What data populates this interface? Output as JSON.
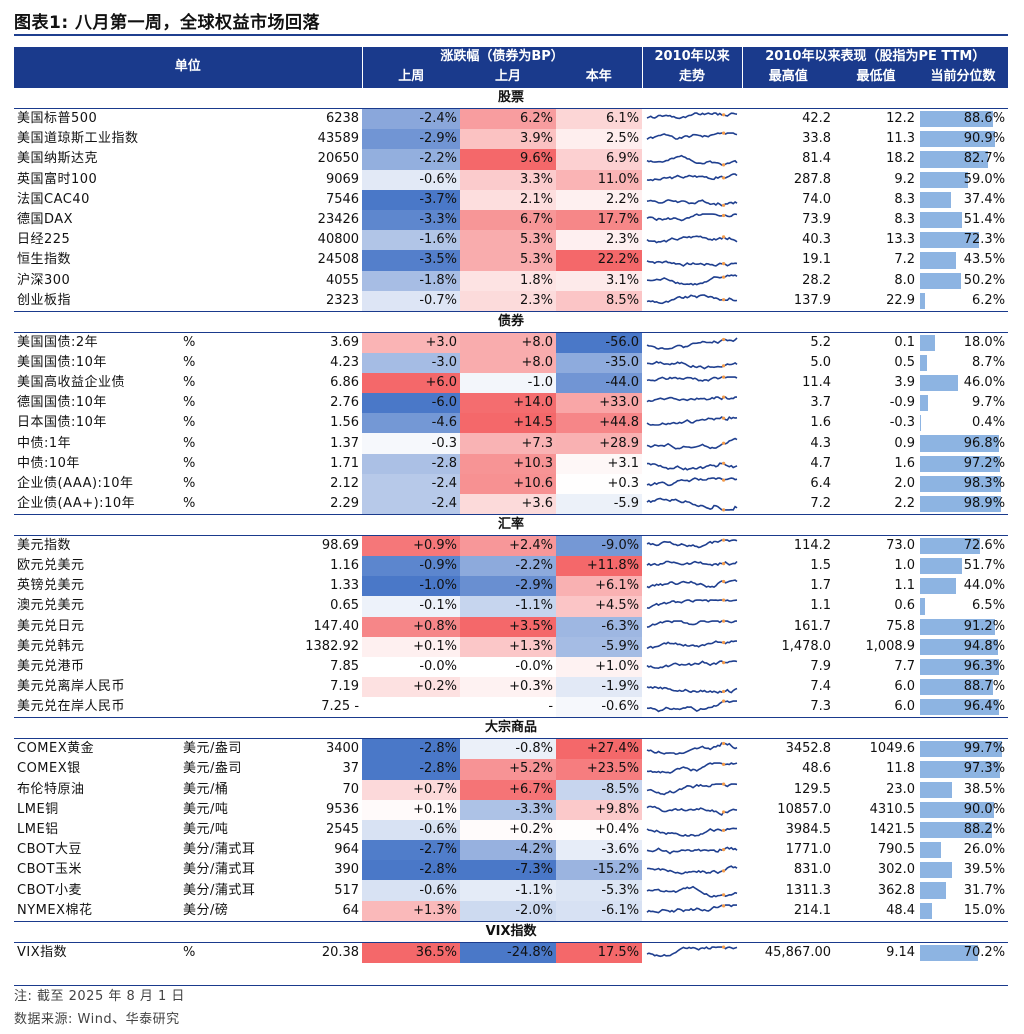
{
  "title": "图表1:  八月第一周，全球权益市场回落",
  "header": {
    "unit": "单位",
    "change_group": "涨跌幅（债券为BP）",
    "week": "上周",
    "month": "上月",
    "ytd": "本年",
    "trend_top": "2010年以来",
    "trend_bottom": "走势",
    "perf_group": "2010年以来表现（股指为PE TTM）",
    "max": "最高值",
    "min": "最低值",
    "pct": "当前分位数"
  },
  "colors": {
    "header_bg": "#1a3a8c",
    "positive_strong": "#f4686a",
    "negative_strong": "#4a78c8",
    "spark_line": "#1f3f8f",
    "pct_bar": "#8db4e2"
  },
  "sections": [
    {
      "title": "股票",
      "rows": [
        {
          "name": "美国标普500",
          "unit": "",
          "value": "6238",
          "week": "-2.4%",
          "month": "6.2%",
          "ytd": "6.1%",
          "max": "42.2",
          "min": "12.2",
          "pct": "88.6%",
          "pv": 0.886,
          "wv": -2.4,
          "mv": 6.2,
          "yv": 6.1
        },
        {
          "name": "美国道琼斯工业指数",
          "unit": "",
          "value": "43589",
          "week": "-2.9%",
          "month": "3.9%",
          "ytd": "2.5%",
          "max": "33.8",
          "min": "11.3",
          "pct": "90.9%",
          "pv": 0.909,
          "wv": -2.9,
          "mv": 3.9,
          "yv": 2.5
        },
        {
          "name": "美国纳斯达克",
          "unit": "",
          "value": "20650",
          "week": "-2.2%",
          "month": "9.6%",
          "ytd": "6.9%",
          "max": "81.4",
          "min": "18.2",
          "pct": "82.7%",
          "pv": 0.827,
          "wv": -2.2,
          "mv": 9.6,
          "yv": 6.9
        },
        {
          "name": "英国富时100",
          "unit": "",
          "value": "9069",
          "week": "-0.6%",
          "month": "3.3%",
          "ytd": "11.0%",
          "max": "287.8",
          "min": "9.2",
          "pct": "59.0%",
          "pv": 0.59,
          "wv": -0.6,
          "mv": 3.3,
          "yv": 11.0
        },
        {
          "name": "法国CAC40",
          "unit": "",
          "value": "7546",
          "week": "-3.7%",
          "month": "2.1%",
          "ytd": "2.2%",
          "max": "74.0",
          "min": "8.3",
          "pct": "37.4%",
          "pv": 0.374,
          "wv": -3.7,
          "mv": 2.1,
          "yv": 2.2
        },
        {
          "name": "德国DAX",
          "unit": "",
          "value": "23426",
          "week": "-3.3%",
          "month": "6.7%",
          "ytd": "17.7%",
          "max": "73.9",
          "min": "8.3",
          "pct": "51.4%",
          "pv": 0.514,
          "wv": -3.3,
          "mv": 6.7,
          "yv": 17.7
        },
        {
          "name": "日经225",
          "unit": "",
          "value": "40800",
          "week": "-1.6%",
          "month": "5.3%",
          "ytd": "2.3%",
          "max": "40.3",
          "min": "13.3",
          "pct": "72.3%",
          "pv": 0.723,
          "wv": -1.6,
          "mv": 5.3,
          "yv": 2.3
        },
        {
          "name": "恒生指数",
          "unit": "",
          "value": "24508",
          "week": "-3.5%",
          "month": "5.3%",
          "ytd": "22.2%",
          "max": "19.1",
          "min": "7.2",
          "pct": "43.5%",
          "pv": 0.435,
          "wv": -3.5,
          "mv": 5.3,
          "yv": 22.2
        },
        {
          "name": "沪深300",
          "unit": "",
          "value": "4055",
          "week": "-1.8%",
          "month": "1.8%",
          "ytd": "3.1%",
          "max": "28.2",
          "min": "8.0",
          "pct": "50.2%",
          "pv": 0.502,
          "wv": -1.8,
          "mv": 1.8,
          "yv": 3.1
        },
        {
          "name": "创业板指",
          "unit": "",
          "value": "2323",
          "week": "-0.7%",
          "month": "2.3%",
          "ytd": "8.5%",
          "max": "137.9",
          "min": "22.9",
          "pct": "6.2%",
          "pv": 0.062,
          "wv": -0.7,
          "mv": 2.3,
          "yv": 8.5
        }
      ]
    },
    {
      "title": "债券",
      "rows": [
        {
          "name": "美国国债:2年",
          "unit": "%",
          "value": "3.69",
          "week": "+3.0",
          "month": "+8.0",
          "ytd": "-56.0",
          "max": "5.2",
          "min": "0.1",
          "pct": "18.0%",
          "pv": 0.18,
          "wv": 3.0,
          "mv": 8.0,
          "yv": -56.0
        },
        {
          "name": "美国国债:10年",
          "unit": "%",
          "value": "4.23",
          "week": "-3.0",
          "month": "+8.0",
          "ytd": "-35.0",
          "max": "5.0",
          "min": "0.5",
          "pct": "8.7%",
          "pv": 0.087,
          "wv": -3.0,
          "mv": 8.0,
          "yv": -35.0
        },
        {
          "name": "美国高收益企业债",
          "unit": "%",
          "value": "6.86",
          "week": "+6.0",
          "month": "-1.0",
          "ytd": "-44.0",
          "max": "11.4",
          "min": "3.9",
          "pct": "46.0%",
          "pv": 0.46,
          "wv": 6.0,
          "mv": -1.0,
          "yv": -44.0
        },
        {
          "name": "德国国债:10年",
          "unit": "%",
          "value": "2.76",
          "week": "-6.0",
          "month": "+14.0",
          "ytd": "+33.0",
          "max": "3.7",
          "min": "-0.9",
          "pct": "9.7%",
          "pv": 0.097,
          "wv": -6.0,
          "mv": 14.0,
          "yv": 33.0
        },
        {
          "name": "日本国债:10年",
          "unit": "%",
          "value": "1.56",
          "week": "-4.6",
          "month": "+14.5",
          "ytd": "+44.8",
          "max": "1.6",
          "min": "-0.3",
          "pct": "0.4%",
          "pv": 0.004,
          "wv": -4.6,
          "mv": 14.5,
          "yv": 44.8
        },
        {
          "name": "中债:1年",
          "unit": "%",
          "value": "1.37",
          "week": "-0.3",
          "month": "+7.3",
          "ytd": "+28.9",
          "max": "4.3",
          "min": "0.9",
          "pct": "96.8%",
          "pv": 0.968,
          "wv": -0.3,
          "mv": 7.3,
          "yv": 28.9
        },
        {
          "name": "中债:10年",
          "unit": "%",
          "value": "1.71",
          "week": "-2.8",
          "month": "+10.3",
          "ytd": "+3.1",
          "max": "4.7",
          "min": "1.6",
          "pct": "97.2%",
          "pv": 0.972,
          "wv": -2.8,
          "mv": 10.3,
          "yv": 3.1
        },
        {
          "name": "企业债(AAA):10年",
          "unit": "%",
          "value": "2.12",
          "week": "-2.4",
          "month": "+10.6",
          "ytd": "+0.3",
          "max": "6.4",
          "min": "2.0",
          "pct": "98.3%",
          "pv": 0.983,
          "wv": -2.4,
          "mv": 10.6,
          "yv": 0.3
        },
        {
          "name": "企业债(AA+):10年",
          "unit": "%",
          "value": "2.29",
          "week": "-2.4",
          "month": "+3.6",
          "ytd": "-5.9",
          "max": "7.2",
          "min": "2.2",
          "pct": "98.9%",
          "pv": 0.989,
          "wv": -2.4,
          "mv": 3.6,
          "yv": -5.9
        }
      ]
    },
    {
      "title": "汇率",
      "rows": [
        {
          "name": "美元指数",
          "unit": "",
          "value": "98.69",
          "week": "+0.9%",
          "month": "+2.4%",
          "ytd": "-9.0%",
          "max": "114.2",
          "min": "73.0",
          "pct": "72.6%",
          "pv": 0.726,
          "wv": 0.9,
          "mv": 2.4,
          "yv": -9.0
        },
        {
          "name": "欧元兑美元",
          "unit": "",
          "value": "1.16",
          "week": "-0.9%",
          "month": "-2.2%",
          "ytd": "+11.8%",
          "max": "1.5",
          "min": "1.0",
          "pct": "51.7%",
          "pv": 0.517,
          "wv": -0.9,
          "mv": -2.2,
          "yv": 11.8
        },
        {
          "name": "英镑兑美元",
          "unit": "",
          "value": "1.33",
          "week": "-1.0%",
          "month": "-2.9%",
          "ytd": "+6.1%",
          "max": "1.7",
          "min": "1.1",
          "pct": "44.0%",
          "pv": 0.44,
          "wv": -1.0,
          "mv": -2.9,
          "yv": 6.1
        },
        {
          "name": "澳元兑美元",
          "unit": "",
          "value": "0.65",
          "week": "-0.1%",
          "month": "-1.1%",
          "ytd": "+4.5%",
          "max": "1.1",
          "min": "0.6",
          "pct": "6.5%",
          "pv": 0.065,
          "wv": -0.1,
          "mv": -1.1,
          "yv": 4.5
        },
        {
          "name": "美元兑日元",
          "unit": "",
          "value": "147.40",
          "week": "+0.8%",
          "month": "+3.5%",
          "ytd": "-6.3%",
          "max": "161.7",
          "min": "75.8",
          "pct": "91.2%",
          "pv": 0.912,
          "wv": 0.8,
          "mv": 3.5,
          "yv": -6.3
        },
        {
          "name": "美元兑韩元",
          "unit": "",
          "value": "1382.92",
          "week": "+0.1%",
          "month": "+1.3%",
          "ytd": "-5.9%",
          "max": "1,478.0",
          "min": "1,008.9",
          "pct": "94.8%",
          "pv": 0.948,
          "wv": 0.1,
          "mv": 1.3,
          "yv": -5.9,
          "flag": true
        },
        {
          "name": "美元兑港币",
          "unit": "",
          "value": "7.85",
          "week": "-0.0%",
          "month": "-0.0%",
          "ytd": "+1.0%",
          "max": "7.9",
          "min": "7.7",
          "pct": "96.3%",
          "pv": 0.963,
          "wv": 0,
          "mv": 0,
          "yv": 1.0
        },
        {
          "name": "美元兑离岸人民币",
          "unit": "",
          "value": "7.19",
          "week": "+0.2%",
          "month": "+0.3%",
          "ytd": "-1.9%",
          "max": "7.4",
          "min": "6.0",
          "pct": "88.7%",
          "pv": 0.887,
          "wv": 0.2,
          "mv": 0.3,
          "yv": -1.9
        },
        {
          "name": "美元兑在岸人民币",
          "unit": "",
          "value": "7.25 -",
          "week": "",
          "month": "-",
          "ytd": "-0.6%",
          "max": "7.3",
          "min": "6.0",
          "pct": "96.4%",
          "pv": 0.964,
          "wv": 0,
          "mv": 0,
          "yv": -0.6
        }
      ]
    },
    {
      "title": "大宗商品",
      "rows": [
        {
          "name": "COMEX黄金",
          "unit": "美元/盎司",
          "value": "3400",
          "week": "-2.8%",
          "month": "-0.8%",
          "ytd": "+27.4%",
          "max": "3452.8",
          "min": "1049.6",
          "pct": "99.7%",
          "pv": 0.997,
          "wv": -2.8,
          "mv": -0.8,
          "yv": 27.4
        },
        {
          "name": "COMEX银",
          "unit": "美元/盎司",
          "value": "37",
          "week": "-2.8%",
          "month": "+5.2%",
          "ytd": "+23.5%",
          "max": "48.6",
          "min": "11.8",
          "pct": "97.3%",
          "pv": 0.973,
          "wv": -2.8,
          "mv": 5.2,
          "yv": 23.5
        },
        {
          "name": "布伦特原油",
          "unit": "美元/桶",
          "value": "70",
          "week": "+0.7%",
          "month": "+6.7%",
          "ytd": "-8.5%",
          "max": "129.5",
          "min": "23.0",
          "pct": "38.5%",
          "pv": 0.385,
          "wv": 0.7,
          "mv": 6.7,
          "yv": -8.5
        },
        {
          "name": "LME铜",
          "unit": "美元/吨",
          "value": "9536",
          "week": "+0.1%",
          "month": "-3.3%",
          "ytd": "+9.8%",
          "max": "10857.0",
          "min": "4310.5",
          "pct": "90.0%",
          "pv": 0.9,
          "wv": 0.1,
          "mv": -3.3,
          "yv": 9.8
        },
        {
          "name": "LME铝",
          "unit": "美元/吨",
          "value": "2545",
          "week": "-0.6%",
          "month": "+0.2%",
          "ytd": "+0.4%",
          "max": "3984.5",
          "min": "1421.5",
          "pct": "88.2%",
          "pv": 0.882,
          "wv": -0.6,
          "mv": 0.2,
          "yv": 0.4
        },
        {
          "name": "CBOT大豆",
          "unit": "美分/蒲式耳",
          "value": "964",
          "week": "-2.7%",
          "month": "-4.2%",
          "ytd": "-3.6%",
          "max": "1771.0",
          "min": "790.5",
          "pct": "26.0%",
          "pv": 0.26,
          "wv": -2.7,
          "mv": -4.2,
          "yv": -3.6
        },
        {
          "name": "CBOT玉米",
          "unit": "美分/蒲式耳",
          "value": "390",
          "week": "-2.8%",
          "month": "-7.3%",
          "ytd": "-15.2%",
          "max": "831.0",
          "min": "302.0",
          "pct": "39.5%",
          "pv": 0.395,
          "wv": -2.8,
          "mv": -7.3,
          "yv": -15.2
        },
        {
          "name": "CBOT小麦",
          "unit": "美分/蒲式耳",
          "value": "517",
          "week": "-0.6%",
          "month": "-1.1%",
          "ytd": "-5.3%",
          "max": "1311.3",
          "min": "362.8",
          "pct": "31.7%",
          "pv": 0.317,
          "wv": -0.6,
          "mv": -1.1,
          "yv": -5.3
        },
        {
          "name": "NYMEX棉花",
          "unit": "美分/磅",
          "value": "64",
          "week": "+1.3%",
          "month": "-2.0%",
          "ytd": "-6.1%",
          "max": "214.1",
          "min": "48.4",
          "pct": "15.0%",
          "pv": 0.15,
          "wv": 1.3,
          "mv": -2.0,
          "yv": -6.1
        }
      ]
    },
    {
      "title": "VIX指数",
      "rows": [
        {
          "name": "VIX指数",
          "unit": "%",
          "value": "20.38",
          "week": "36.5%",
          "month": "-24.8%",
          "ytd": "17.5%",
          "max": "45,867.00",
          "min": "9.14",
          "pct": "70.2%",
          "pv": 0.702,
          "wv": 36.5,
          "mv": -24.8,
          "yv": 17.5
        }
      ]
    }
  ],
  "footnotes": {
    "note": "注:  截至 2025 年 8 月 1 日",
    "source": "数据来源:  Wind、华泰研究"
  }
}
